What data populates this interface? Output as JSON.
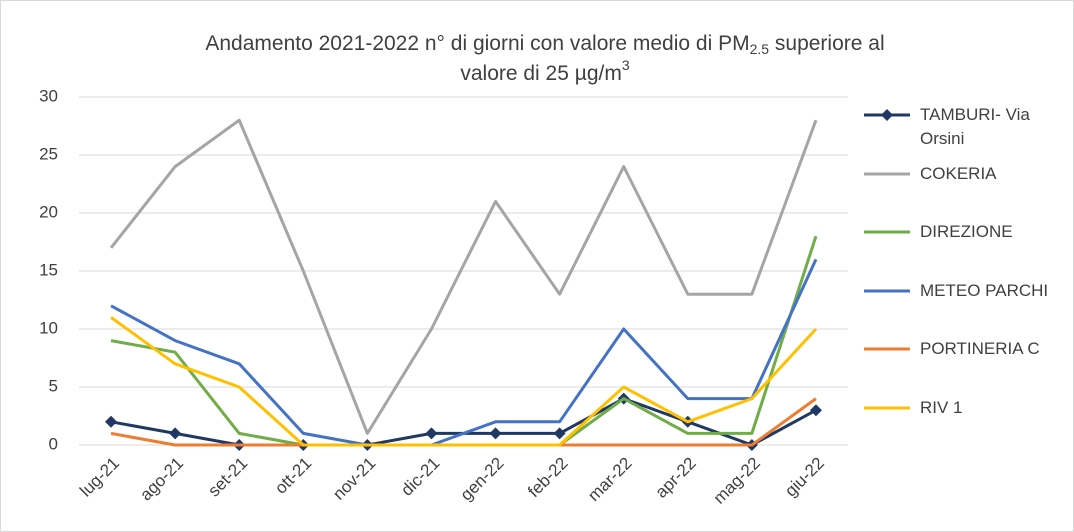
{
  "chart_data": {
    "type": "line",
    "title_lines": [
      [
        {
          "text": "Andamento 2021-2022 n° di giorni con valore medio di PM"
        },
        {
          "text": "2.5",
          "shift": "sub"
        },
        {
          "text": " superiore al"
        }
      ],
      [
        {
          "text": "valore di 25 µg/m"
        },
        {
          "text": "3",
          "shift": "super"
        }
      ]
    ],
    "categories": [
      "lug-21",
      "ago-21",
      "set-21",
      "ott-21",
      "nov-21",
      "dic-21",
      "gen-22",
      "feb-22",
      "mar-22",
      "apr-22",
      "mag-22",
      "giu-22"
    ],
    "series": [
      {
        "name": "TAMBURI- Via Orsini",
        "color": "#1f3864",
        "marker": "diamond",
        "values": [
          2,
          1,
          0,
          0,
          0,
          1,
          1,
          1,
          4,
          2,
          0,
          3
        ]
      },
      {
        "name": "COKERIA",
        "color": "#a5a5a5",
        "values": [
          17,
          24,
          28,
          15,
          1,
          10,
          21,
          13,
          24,
          13,
          13,
          28
        ]
      },
      {
        "name": "DIREZIONE",
        "color": "#70ad47",
        "values": [
          9,
          8,
          1,
          0,
          0,
          0,
          0,
          0,
          4,
          1,
          1,
          18
        ]
      },
      {
        "name": "METEO PARCHI",
        "color": "#4472c4",
        "values": [
          12,
          9,
          7,
          1,
          0,
          0,
          2,
          2,
          10,
          4,
          4,
          16
        ]
      },
      {
        "name": "PORTINERIA C",
        "color": "#ed7d31",
        "values": [
          1,
          0,
          0,
          0,
          0,
          0,
          0,
          0,
          0,
          0,
          0,
          4
        ]
      },
      {
        "name": "RIV 1",
        "color": "#ffc000",
        "values": [
          11,
          7,
          5,
          0,
          0,
          0,
          0,
          0,
          5,
          2,
          4,
          10
        ]
      }
    ],
    "ylim": [
      0,
      30
    ],
    "yticks": [
      0,
      5,
      10,
      15,
      20,
      25,
      30
    ],
    "grid": true,
    "legend": "right"
  }
}
